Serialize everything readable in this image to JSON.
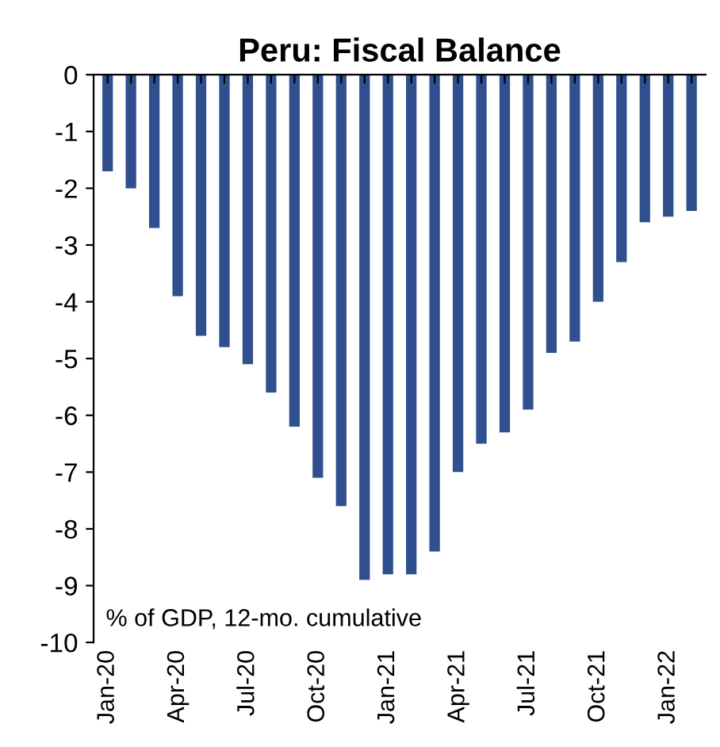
{
  "chart_data": {
    "type": "bar",
    "title": "Peru: Fiscal Balance",
    "categories": [
      "Jan-20",
      null,
      null,
      "Apr-20",
      null,
      null,
      "Jul-20",
      null,
      null,
      "Oct-20",
      null,
      null,
      "Jan-21",
      null,
      null,
      "Apr-21",
      null,
      null,
      "Jul-21",
      null,
      null,
      "Oct-21",
      null,
      null,
      "Jan-22",
      null
    ],
    "values": [
      -1.7,
      -2.0,
      -2.7,
      -3.9,
      -4.6,
      -4.8,
      -5.1,
      -5.6,
      -6.2,
      -7.1,
      -7.6,
      -8.9,
      -8.8,
      -8.8,
      -8.4,
      -7.0,
      -6.5,
      -6.3,
      -5.9,
      -4.9,
      -4.7,
      -4.0,
      -3.3,
      -2.6,
      -2.5,
      -2.4
    ],
    "color": "#2f4f8f",
    "ylim": [
      -10,
      0
    ],
    "yticks": [
      -10,
      -9,
      -8,
      -7,
      -6,
      -5,
      -4,
      -3,
      -2,
      -1,
      0
    ],
    "grid": false,
    "annotations": [
      "% of GDP, 12-mo. cumulative"
    ]
  }
}
